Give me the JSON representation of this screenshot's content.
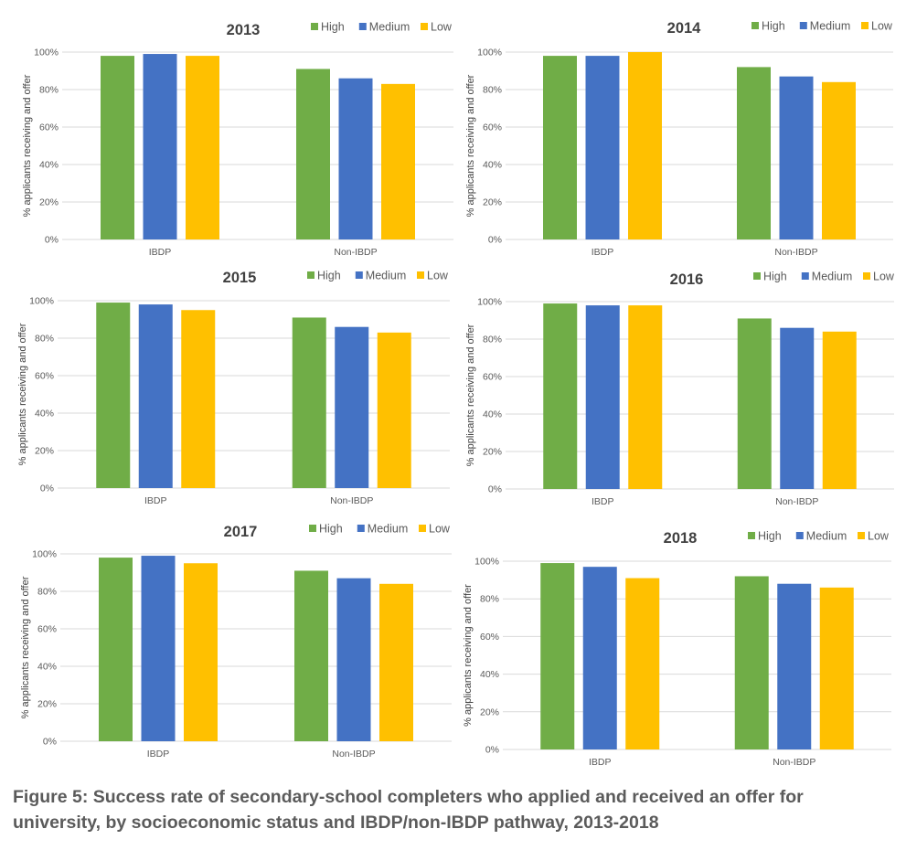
{
  "colors": {
    "High": "#70ad47",
    "Medium": "#4472c4",
    "Low": "#ffc000",
    "grid": "#d9d9d9",
    "text": "#404040"
  },
  "chart_data": [
    {
      "type": "bar",
      "title": "2013",
      "categories": [
        "IBDP",
        "Non-IBDP"
      ],
      "series": [
        {
          "name": "High",
          "values": [
            98,
            91
          ]
        },
        {
          "name": "Medium",
          "values": [
            99,
            86
          ]
        },
        {
          "name": "Low",
          "values": [
            98,
            83
          ]
        }
      ],
      "ylabel": "% applicants receiving and offer",
      "ylim": [
        0,
        100
      ],
      "yticks": [
        "0%",
        "20%",
        "40%",
        "60%",
        "80%",
        "100%"
      ],
      "grid": true,
      "legend": "top-right"
    },
    {
      "type": "bar",
      "title": "2014",
      "categories": [
        "IBDP",
        "Non-IBDP"
      ],
      "series": [
        {
          "name": "High",
          "values": [
            98,
            92
          ]
        },
        {
          "name": "Medium",
          "values": [
            98,
            87
          ]
        },
        {
          "name": "Low",
          "values": [
            100,
            84
          ]
        }
      ],
      "ylabel": "% applicants receiving and offer",
      "ylim": [
        0,
        100
      ],
      "yticks": [
        "0%",
        "20%",
        "40%",
        "60%",
        "80%",
        "100%"
      ],
      "grid": true,
      "legend": "top-right"
    },
    {
      "type": "bar",
      "title": "2015",
      "categories": [
        "IBDP",
        "Non-IBDP"
      ],
      "series": [
        {
          "name": "High",
          "values": [
            99,
            91
          ]
        },
        {
          "name": "Medium",
          "values": [
            98,
            86
          ]
        },
        {
          "name": "Low",
          "values": [
            95,
            83
          ]
        }
      ],
      "ylabel": "% applicants receiving and offer",
      "ylim": [
        0,
        100
      ],
      "yticks": [
        "0%",
        "20%",
        "40%",
        "60%",
        "80%",
        "100%"
      ],
      "grid": true,
      "legend": "top-right"
    },
    {
      "type": "bar",
      "title": "2016",
      "categories": [
        "IBDP",
        "Non-IBDP"
      ],
      "series": [
        {
          "name": "High",
          "values": [
            99,
            91
          ]
        },
        {
          "name": "Medium",
          "values": [
            98,
            86
          ]
        },
        {
          "name": "Low",
          "values": [
            98,
            84
          ]
        }
      ],
      "ylabel": "% applicants receiving and offer",
      "ylim": [
        0,
        100
      ],
      "yticks": [
        "0%",
        "20%",
        "40%",
        "60%",
        "80%",
        "100%"
      ],
      "grid": true,
      "legend": "top-right"
    },
    {
      "type": "bar",
      "title": "2017",
      "categories": [
        "IBDP",
        "Non-IBDP"
      ],
      "series": [
        {
          "name": "High",
          "values": [
            98,
            91
          ]
        },
        {
          "name": "Medium",
          "values": [
            99,
            87
          ]
        },
        {
          "name": "Low",
          "values": [
            95,
            84
          ]
        }
      ],
      "ylabel": "% applicants receiving and offer",
      "ylim": [
        0,
        100
      ],
      "yticks": [
        "0%",
        "20%",
        "40%",
        "60%",
        "80%",
        "100%"
      ],
      "grid": true,
      "legend": "top-right"
    },
    {
      "type": "bar",
      "title": "2018",
      "categories": [
        "IBDP",
        "Non-IBDP"
      ],
      "series": [
        {
          "name": "High",
          "values": [
            99,
            92
          ]
        },
        {
          "name": "Medium",
          "values": [
            97,
            88
          ]
        },
        {
          "name": "Low",
          "values": [
            91,
            86
          ]
        }
      ],
      "ylabel": "% applicants receiving and offer",
      "ylim": [
        0,
        100
      ],
      "yticks": [
        "0%",
        "20%",
        "40%",
        "60%",
        "80%",
        "100%"
      ],
      "grid": true,
      "legend": "top-right"
    }
  ],
  "caption": "Figure 5: Success rate of secondary-school completers who applied and received an offer for university, by socioeconomic status and IBDP/non-IBDP pathway, 2013-2018"
}
